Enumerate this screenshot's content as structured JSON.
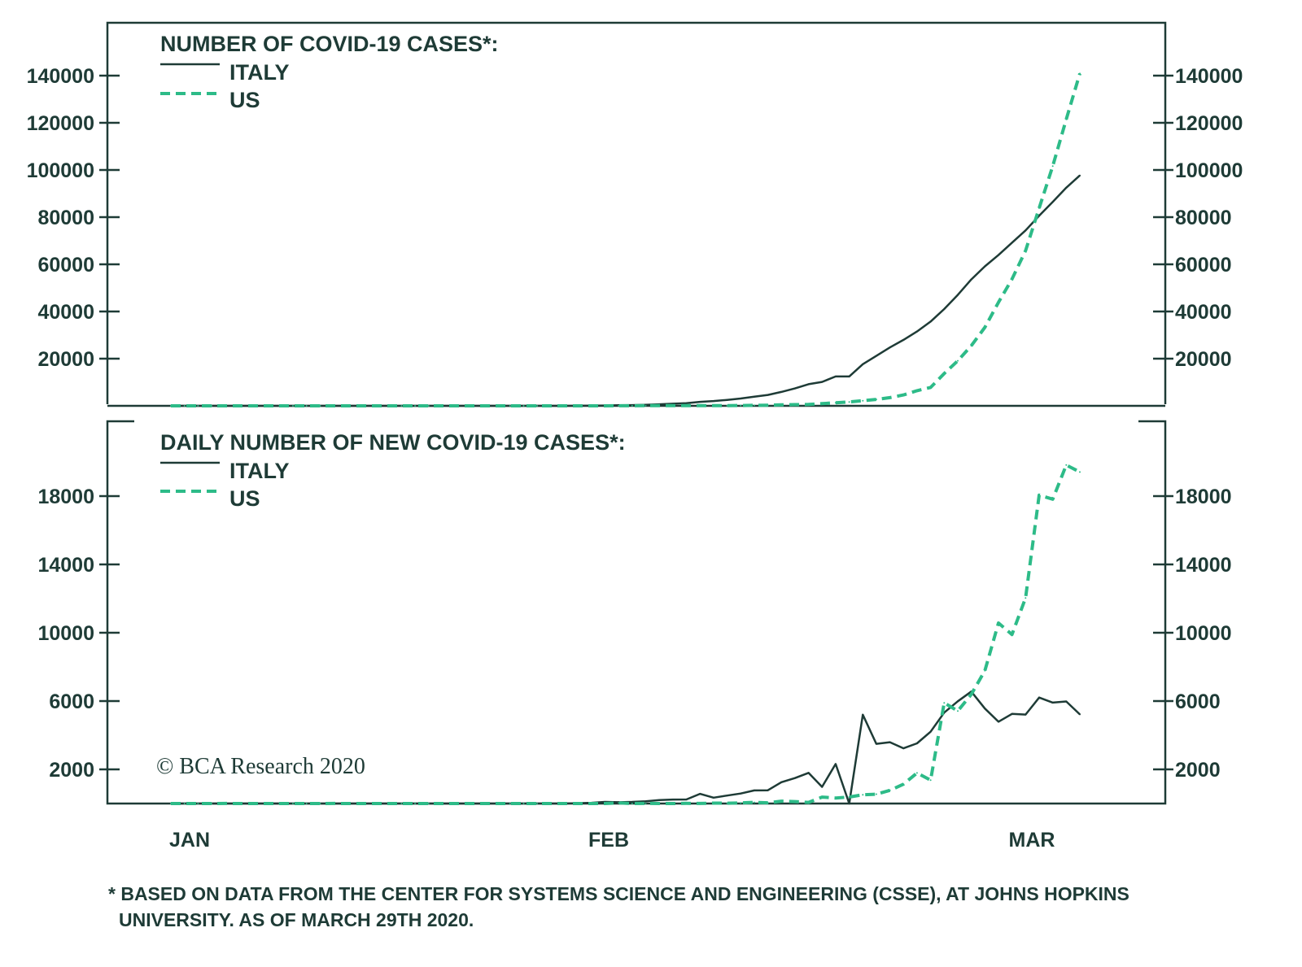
{
  "colors": {
    "italy": "#1e3b36",
    "us": "#2dbb88",
    "axis": "#1e3b36"
  },
  "chart_data": [
    {
      "type": "line",
      "title": "NUMBER OF COVID-19 CASES*:",
      "x_start": "2020-01-22",
      "x_end": "2020-03-29",
      "x_tick_labels": [
        "JAN",
        "FEB",
        "MAR"
      ],
      "ylim": [
        0,
        160000
      ],
      "yticks": [
        20000,
        40000,
        60000,
        80000,
        100000,
        120000,
        140000
      ],
      "dual_axis_same_scale": true,
      "legend_placement": "top-left",
      "series": [
        {
          "name": "ITALY",
          "style": "solid",
          "values": [
            0,
            0,
            0,
            0,
            0,
            0,
            0,
            0,
            0,
            2,
            2,
            2,
            2,
            2,
            2,
            2,
            3,
            3,
            3,
            3,
            3,
            3,
            3,
            3,
            3,
            3,
            3,
            3,
            3,
            3,
            20,
            62,
            155,
            229,
            322,
            453,
            655,
            888,
            1128,
            1694,
            2036,
            2502,
            3089,
            3858,
            4636,
            5883,
            7375,
            9172,
            10149,
            12462,
            12462,
            17660,
            21157,
            24747,
            27980,
            31506,
            35713,
            41035,
            47021,
            53578,
            59138,
            63927,
            69176,
            74386,
            80589,
            86498,
            92472,
            97689
          ]
        },
        {
          "name": "US",
          "style": "dashed",
          "values": [
            1,
            1,
            2,
            2,
            5,
            5,
            5,
            5,
            5,
            7,
            8,
            8,
            11,
            11,
            11,
            11,
            11,
            11,
            11,
            11,
            12,
            12,
            13,
            13,
            13,
            13,
            13,
            13,
            13,
            13,
            15,
            15,
            15,
            51,
            51,
            57,
            58,
            60,
            68,
            74,
            98,
            118,
            149,
            217,
            262,
            402,
            518,
            583,
            959,
            1281,
            1663,
            2179,
            2726,
            3499,
            4632,
            6421,
            7786,
            13680,
            19101,
            25493,
            33276,
            43847,
            53740,
            65778,
            83836,
            101657,
            121478,
            140886
          ]
        }
      ]
    },
    {
      "type": "line",
      "title": "DAILY NUMBER OF NEW COVID-19 CASES*:",
      "x_start": "2020-01-22",
      "x_end": "2020-03-29",
      "x_tick_labels": [
        "JAN",
        "FEB",
        "MAR"
      ],
      "ylim": [
        0,
        20000
      ],
      "yticks": [
        2000,
        6000,
        10000,
        14000,
        18000
      ],
      "dual_axis_same_scale": true,
      "legend_placement": "top-left",
      "series": [
        {
          "name": "ITALY",
          "style": "solid",
          "values": [
            0,
            0,
            0,
            0,
            0,
            0,
            0,
            0,
            0,
            2,
            0,
            0,
            0,
            0,
            0,
            0,
            1,
            0,
            0,
            0,
            0,
            0,
            0,
            0,
            0,
            0,
            0,
            0,
            0,
            0,
            17,
            42,
            93,
            74,
            93,
            131,
            202,
            233,
            240,
            566,
            342,
            466,
            587,
            769,
            778,
            1247,
            1492,
            1797,
            977,
            2313,
            0,
            5198,
            3497,
            3590,
            3233,
            3526,
            4207,
            5322,
            5986,
            6557,
            5560,
            4789,
            5249,
            5210,
            6203,
            5909,
            5974,
            5217
          ]
        },
        {
          "name": "US",
          "style": "dashed",
          "values": [
            1,
            0,
            1,
            0,
            3,
            0,
            0,
            0,
            0,
            2,
            1,
            0,
            3,
            0,
            0,
            0,
            0,
            0,
            0,
            0,
            1,
            0,
            1,
            0,
            0,
            0,
            0,
            0,
            0,
            0,
            2,
            0,
            0,
            36,
            0,
            6,
            1,
            2,
            8,
            6,
            24,
            20,
            31,
            68,
            45,
            140,
            116,
            65,
            376,
            322,
            382,
            516,
            547,
            773,
            1133,
            1789,
            1365,
            5894,
            5421,
            6392,
            7783,
            10571,
            9893,
            12038,
            18058,
            17821,
            19821,
            19408
          ]
        }
      ]
    }
  ],
  "top": {
    "title": "NUMBER OF COVID-19 CASES*:",
    "legend": [
      "ITALY",
      "US"
    ]
  },
  "bottom": {
    "title": "DAILY NUMBER OF NEW COVID-19 CASES*:",
    "legend": [
      "ITALY",
      "US"
    ]
  },
  "x_labels": [
    "JAN",
    "FEB",
    "MAR"
  ],
  "copyright": "© BCA Research 2020",
  "footnote": {
    "line1": "* BASED ON DATA FROM THE CENTER FOR SYSTEMS SCIENCE AND ENGINEERING (CSSE), AT JOHNS HOPKINS",
    "line2": "UNIVERSITY. AS OF MARCH 29TH 2020."
  }
}
